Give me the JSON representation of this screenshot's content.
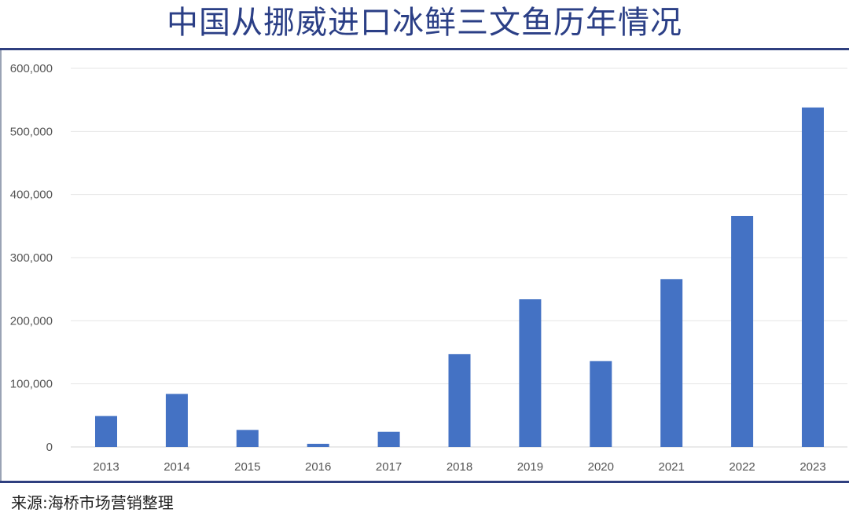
{
  "page": {
    "title": "中国从挪威进口冰鲜三文鱼历年情况",
    "source": "来源:海桥市场营销整理"
  },
  "colors": {
    "title": "#2b3f86",
    "bar": "#4472c4",
    "rule": "#2f3f7f"
  },
  "chart_data": {
    "type": "bar",
    "title": "中国从挪威进口冰鲜三文鱼历年情况",
    "xlabel": "",
    "ylabel": "",
    "categories": [
      "2013",
      "2014",
      "2015",
      "2016",
      "2017",
      "2018",
      "2019",
      "2020",
      "2021",
      "2022",
      "2023"
    ],
    "values": [
      49000,
      84000,
      27000,
      5000,
      24000,
      147000,
      234000,
      136000,
      266000,
      366000,
      538000
    ],
    "ylim": [
      0,
      600000
    ],
    "yticks": [
      0,
      100000,
      200000,
      300000,
      400000,
      500000,
      600000
    ],
    "ytick_labels": [
      "0",
      "100,000",
      "200,000",
      "300,000",
      "400,000",
      "500,000",
      "600,000"
    ],
    "grid": true,
    "legend": "none"
  }
}
